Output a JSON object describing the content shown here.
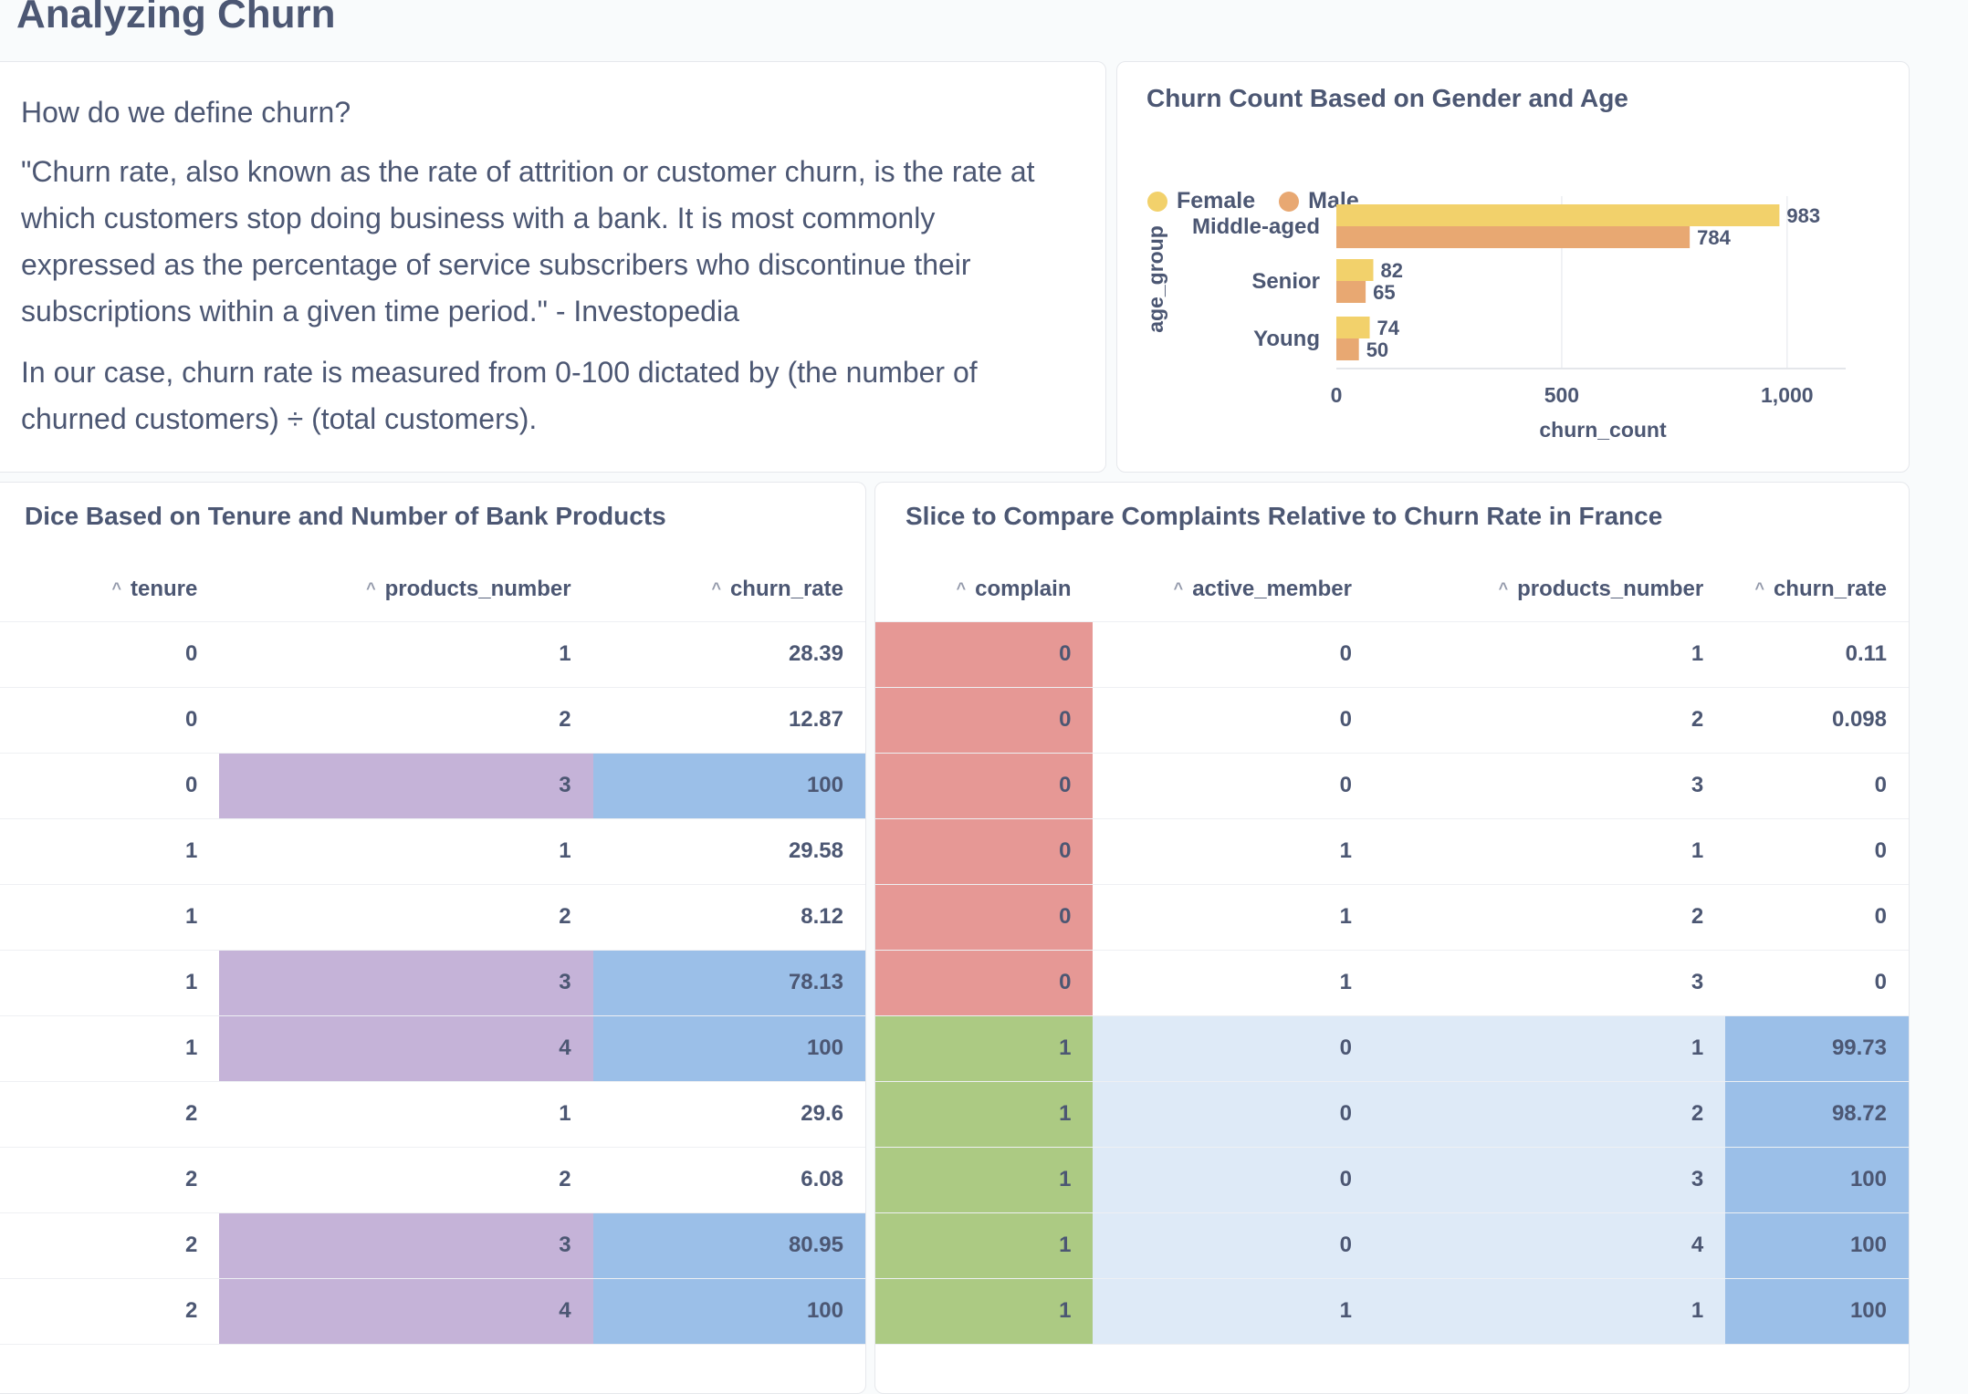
{
  "page": {
    "title": "Analyzing Churn"
  },
  "text_card": {
    "question": "How do we define churn?",
    "quote": "\"Churn rate, also known as the rate of attrition or customer churn, is the rate at which customers stop doing business with a bank. It is most commonly expressed as the percentage of service subscribers who discontinue their subscriptions within a given time period.\" - Investopedia",
    "note": "In our case, churn rate is measured from 0-100 dictated by (the number of churned customers) ÷ (total customers)."
  },
  "chart_card": {
    "title": "Churn Count Based on Gender and Age",
    "legend": [
      {
        "label": "Female",
        "color": "#f2d16b"
      },
      {
        "label": "Male",
        "color": "#e8a872"
      }
    ]
  },
  "chart_data": {
    "type": "bar",
    "orientation": "horizontal",
    "title": "Churn Count Based on Gender and Age",
    "categories": [
      "Middle-aged",
      "Senior",
      "Young"
    ],
    "series": [
      {
        "name": "Female",
        "values": [
          983,
          82,
          74
        ],
        "color": "#f2d16b"
      },
      {
        "name": "Male",
        "values": [
          784,
          65,
          50
        ],
        "color": "#e8a872"
      }
    ],
    "xlabel": "churn_count",
    "ylabel": "age_group",
    "xlim": [
      0,
      1130
    ],
    "xticks": [
      {
        "value": 0,
        "label": "0"
      },
      {
        "value": 500,
        "label": "500"
      },
      {
        "value": 1000,
        "label": "1,000"
      }
    ],
    "grid": true,
    "legend_position": "top-left"
  },
  "table1": {
    "title": "Dice Based on Tenure and Number of Bank Products",
    "columns": [
      "tenure",
      "products_number",
      "churn_rate"
    ],
    "rows": [
      [
        "0",
        "1",
        "28.39"
      ],
      [
        "0",
        "2",
        "12.87"
      ],
      [
        "0",
        "3",
        "100"
      ],
      [
        "1",
        "1",
        "29.58"
      ],
      [
        "1",
        "2",
        "8.12"
      ],
      [
        "1",
        "3",
        "78.13"
      ],
      [
        "1",
        "4",
        "100"
      ],
      [
        "2",
        "1",
        "29.6"
      ],
      [
        "2",
        "2",
        "6.08"
      ],
      [
        "2",
        "3",
        "80.95"
      ],
      [
        "2",
        "4",
        "100"
      ]
    ],
    "highlight_colors": {
      "products_number": "#c5b3d8",
      "churn_rate": "#9bbfe8"
    }
  },
  "table2": {
    "title": "Slice to Compare Complaints Relative to Churn Rate in France",
    "columns": [
      "complain",
      "active_member",
      "products_number",
      "churn_rate"
    ],
    "rows": [
      [
        "0",
        "0",
        "1",
        "0.11"
      ],
      [
        "0",
        "0",
        "2",
        "0.098"
      ],
      [
        "0",
        "0",
        "3",
        "0"
      ],
      [
        "0",
        "1",
        "1",
        "0"
      ],
      [
        "0",
        "1",
        "2",
        "0"
      ],
      [
        "0",
        "1",
        "3",
        "0"
      ],
      [
        "1",
        "0",
        "1",
        "99.73"
      ],
      [
        "1",
        "0",
        "2",
        "98.72"
      ],
      [
        "1",
        "0",
        "3",
        "100"
      ],
      [
        "1",
        "0",
        "4",
        "100"
      ],
      [
        "1",
        "1",
        "1",
        "100"
      ]
    ],
    "highlight_colors": {
      "complain_0": "#e69895",
      "complain_1": "#acca83",
      "row_band": "#deeaf7",
      "churn_rate": "#9bbfe8"
    }
  }
}
